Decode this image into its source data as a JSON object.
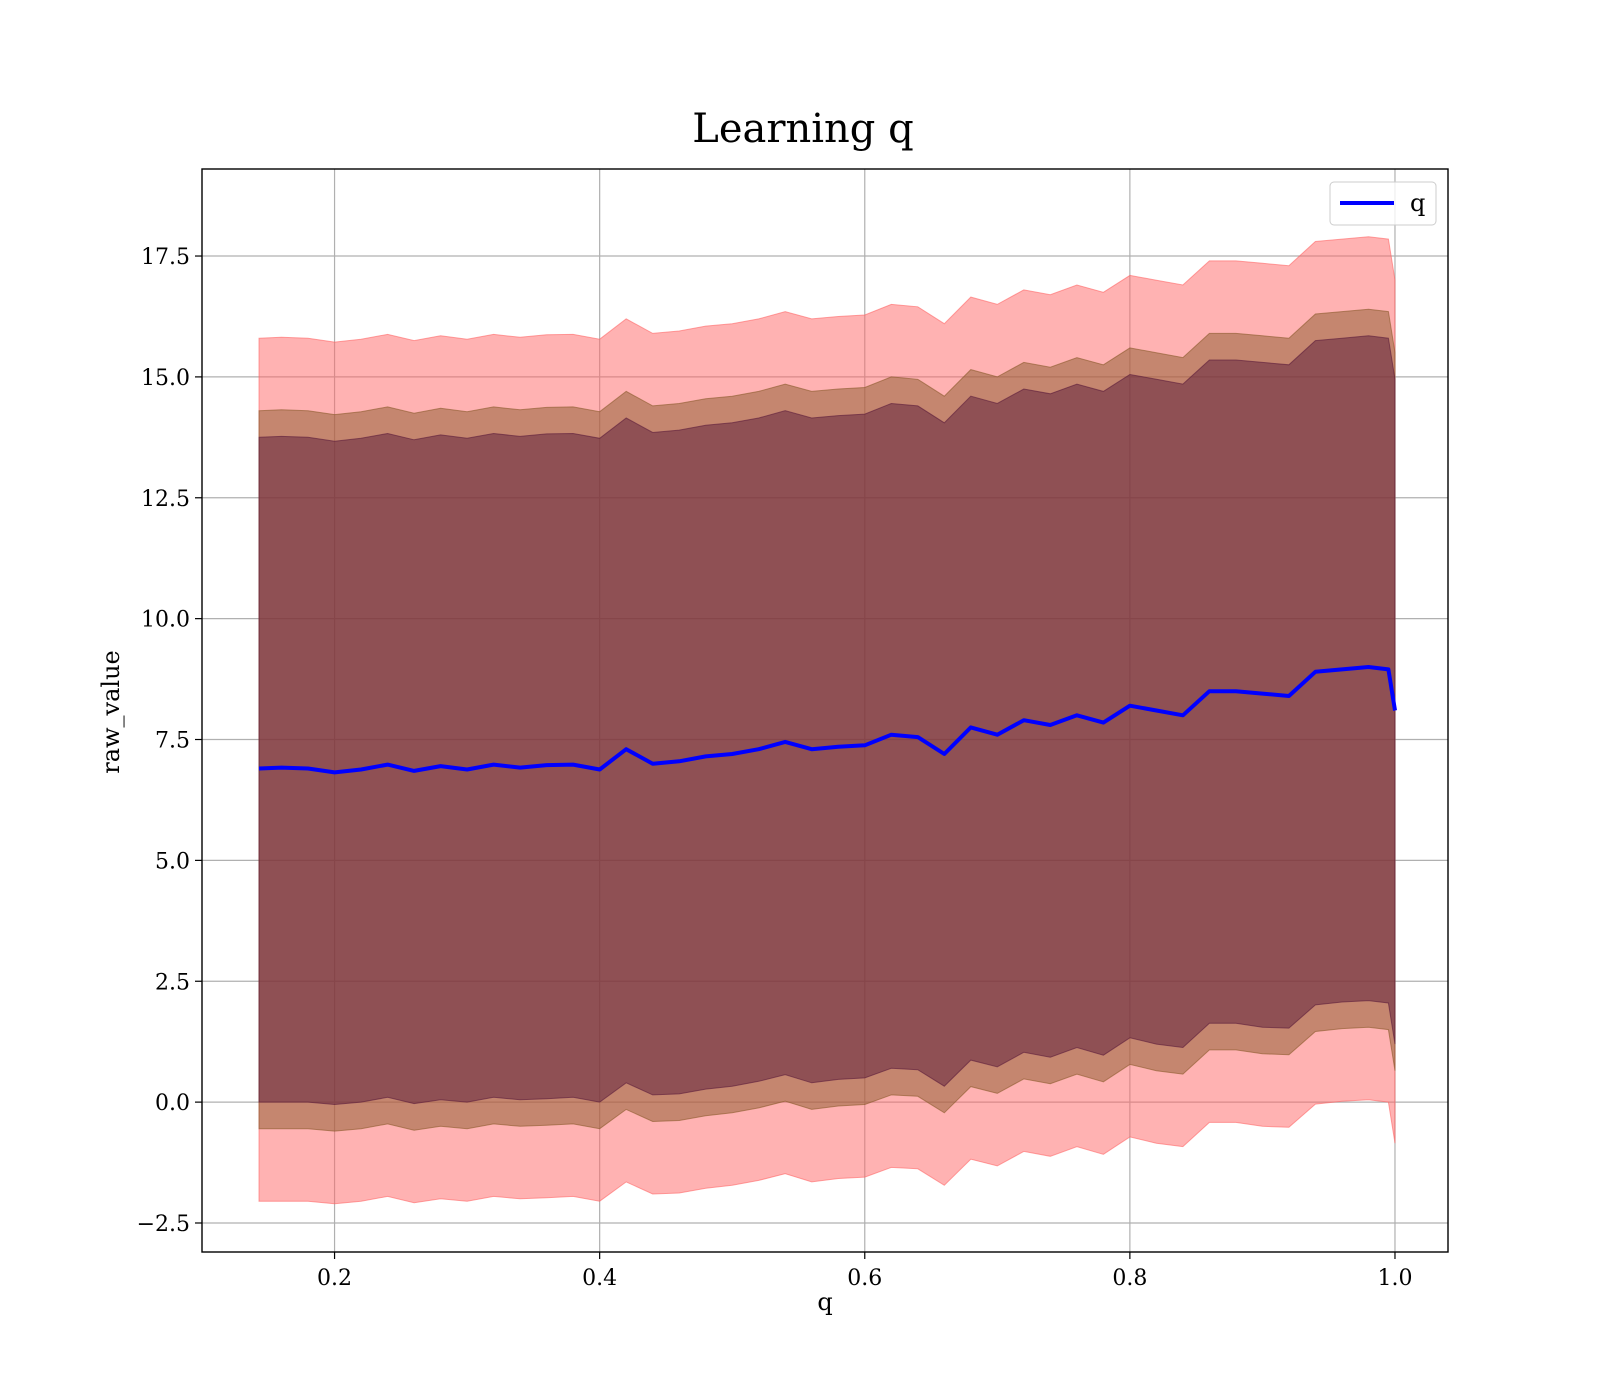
{
  "chart_data": {
    "type": "area",
    "title": "Learning q",
    "xlabel": "q",
    "ylabel": "raw_value",
    "xlim": [
      0.1,
      1.04
    ],
    "ylim": [
      -3.1,
      19.3
    ],
    "xticks": [
      0.2,
      0.4,
      0.6,
      0.8,
      1.0
    ],
    "xtick_labels": [
      "0.2",
      "0.4",
      "0.6",
      "0.8",
      "1.0"
    ],
    "yticks": [
      -2.5,
      0.0,
      2.5,
      5.0,
      7.5,
      10.0,
      12.5,
      15.0,
      17.5
    ],
    "ytick_labels": [
      "−2.5",
      "0.0",
      "2.5",
      "5.0",
      "7.5",
      "10.0",
      "12.5",
      "15.0",
      "17.5"
    ],
    "grid": true,
    "legend": {
      "position": "top-right",
      "entries": [
        {
          "label": "q",
          "color": "#0000ff"
        }
      ]
    },
    "x": [
      0.143,
      0.16,
      0.18,
      0.2,
      0.22,
      0.24,
      0.26,
      0.28,
      0.3,
      0.32,
      0.34,
      0.36,
      0.38,
      0.4,
      0.42,
      0.44,
      0.46,
      0.48,
      0.5,
      0.52,
      0.54,
      0.56,
      0.58,
      0.6,
      0.62,
      0.64,
      0.66,
      0.68,
      0.7,
      0.72,
      0.74,
      0.76,
      0.78,
      0.8,
      0.82,
      0.84,
      0.86,
      0.88,
      0.9,
      0.92,
      0.94,
      0.96,
      0.98,
      0.995,
      1.0
    ],
    "series": [
      {
        "name": "q",
        "color": "#0000ff",
        "values": [
          6.9,
          6.92,
          6.9,
          6.82,
          6.88,
          6.98,
          6.85,
          6.95,
          6.88,
          6.98,
          6.92,
          6.97,
          6.98,
          6.88,
          7.3,
          7.0,
          7.05,
          7.15,
          7.2,
          7.3,
          7.45,
          7.3,
          7.35,
          7.38,
          7.6,
          7.55,
          7.2,
          7.75,
          7.6,
          7.9,
          7.8,
          8.0,
          7.85,
          8.2,
          8.1,
          8.0,
          8.5,
          8.5,
          8.45,
          8.4,
          8.9,
          8.95,
          9.0,
          8.95,
          8.1
        ]
      }
    ],
    "bands": [
      {
        "color": "#ff6666",
        "opacity": 0.5,
        "lower": [
          -2.05,
          -2.05,
          -2.05,
          -2.1,
          -2.05,
          -1.95,
          -2.08,
          -2.0,
          -2.05,
          -1.95,
          -2.0,
          -1.98,
          -1.95,
          -2.05,
          -1.65,
          -1.9,
          -1.88,
          -1.78,
          -1.72,
          -1.62,
          -1.48,
          -1.65,
          -1.58,
          -1.55,
          -1.35,
          -1.38,
          -1.72,
          -1.18,
          -1.32,
          -1.02,
          -1.12,
          -0.92,
          -1.08,
          -0.72,
          -0.85,
          -0.92,
          -0.42,
          -0.42,
          -0.5,
          -0.52,
          -0.04,
          0.02,
          0.05,
          0.0,
          -0.85
        ],
        "upper": [
          15.8,
          15.82,
          15.8,
          15.72,
          15.78,
          15.88,
          15.75,
          15.85,
          15.78,
          15.88,
          15.82,
          15.87,
          15.88,
          15.78,
          16.2,
          15.9,
          15.95,
          16.05,
          16.1,
          16.2,
          16.35,
          16.2,
          16.25,
          16.28,
          16.5,
          16.45,
          16.1,
          16.65,
          16.5,
          16.8,
          16.7,
          16.9,
          16.75,
          17.1,
          17.0,
          16.9,
          17.4,
          17.4,
          17.35,
          17.3,
          17.8,
          17.85,
          17.9,
          17.85,
          17.0
        ]
      },
      {
        "color": "#8b5a2b",
        "opacity": 0.5,
        "lower": [
          -0.55,
          -0.55,
          -0.55,
          -0.6,
          -0.55,
          -0.45,
          -0.58,
          -0.5,
          -0.55,
          -0.45,
          -0.5,
          -0.48,
          -0.45,
          -0.55,
          -0.15,
          -0.4,
          -0.38,
          -0.28,
          -0.22,
          -0.12,
          0.02,
          -0.15,
          -0.08,
          -0.05,
          0.15,
          0.12,
          -0.22,
          0.32,
          0.18,
          0.48,
          0.38,
          0.58,
          0.42,
          0.78,
          0.65,
          0.58,
          1.08,
          1.08,
          1.0,
          0.98,
          1.46,
          1.52,
          1.55,
          1.5,
          0.65
        ],
        "upper": [
          14.3,
          14.32,
          14.3,
          14.22,
          14.28,
          14.38,
          14.25,
          14.35,
          14.28,
          14.38,
          14.32,
          14.37,
          14.38,
          14.28,
          14.7,
          14.4,
          14.45,
          14.55,
          14.6,
          14.7,
          14.85,
          14.7,
          14.75,
          14.78,
          15.0,
          14.95,
          14.6,
          15.15,
          15.0,
          15.3,
          15.2,
          15.4,
          15.25,
          15.6,
          15.5,
          15.4,
          15.9,
          15.9,
          15.85,
          15.8,
          16.3,
          16.35,
          16.4,
          16.35,
          15.5
        ]
      },
      {
        "color": "#5a1a3a",
        "opacity": 0.5,
        "lower": [
          0.0,
          0.0,
          0.0,
          -0.05,
          0.0,
          0.1,
          -0.03,
          0.05,
          0.0,
          0.1,
          0.05,
          0.07,
          0.1,
          0.0,
          0.4,
          0.15,
          0.17,
          0.27,
          0.33,
          0.43,
          0.57,
          0.4,
          0.47,
          0.5,
          0.7,
          0.67,
          0.33,
          0.87,
          0.73,
          1.03,
          0.93,
          1.13,
          0.97,
          1.33,
          1.2,
          1.13,
          1.63,
          1.63,
          1.55,
          1.53,
          2.01,
          2.07,
          2.1,
          2.05,
          1.2
        ],
        "upper": [
          13.75,
          13.77,
          13.75,
          13.67,
          13.73,
          13.83,
          13.7,
          13.8,
          13.73,
          13.83,
          13.77,
          13.82,
          13.83,
          13.73,
          14.15,
          13.85,
          13.9,
          14.0,
          14.05,
          14.15,
          14.3,
          14.15,
          14.2,
          14.23,
          14.45,
          14.4,
          14.05,
          14.6,
          14.45,
          14.75,
          14.65,
          14.85,
          14.7,
          15.05,
          14.95,
          14.85,
          15.35,
          15.35,
          15.3,
          15.25,
          15.75,
          15.8,
          15.85,
          15.8,
          14.95
        ]
      }
    ]
  }
}
